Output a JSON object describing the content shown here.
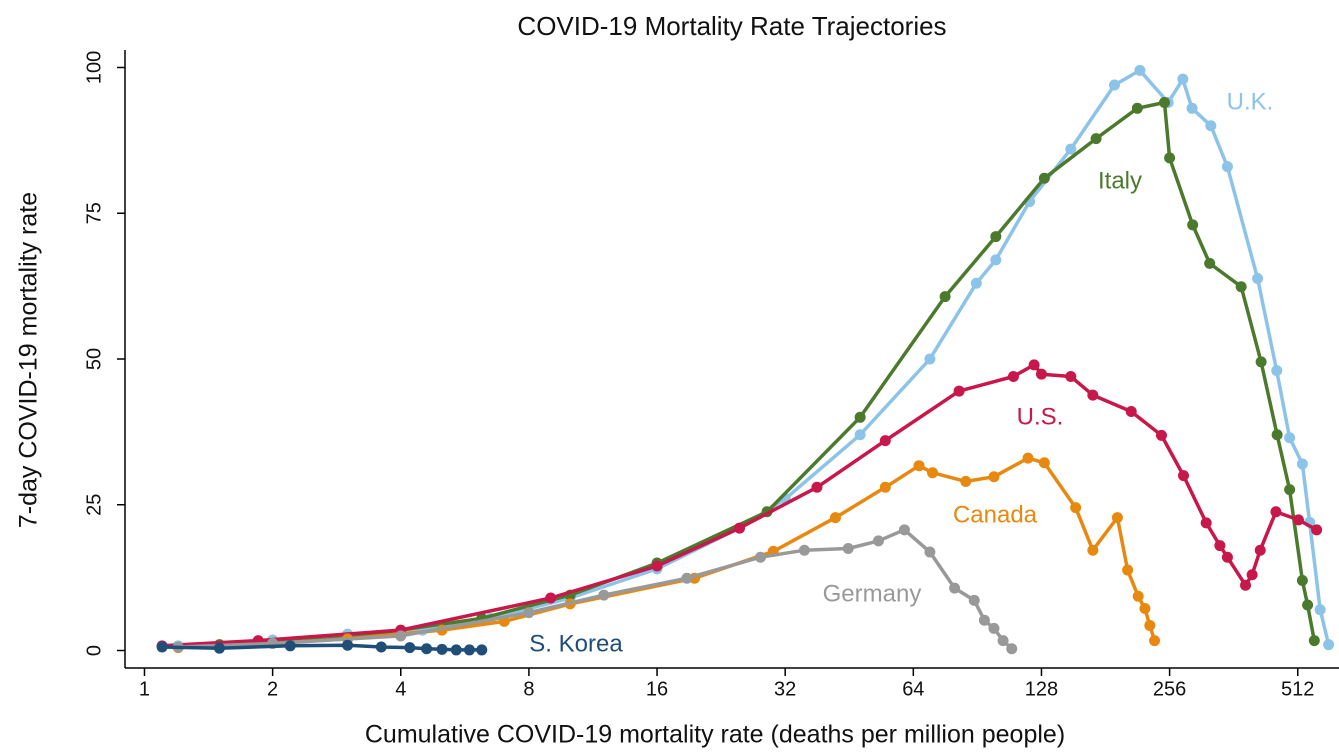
{
  "chart_data": {
    "type": "line",
    "title": "COVID-19 Mortality Rate Trajectories",
    "x_label": "Cumulative COVID-19 mortality rate (deaths per million people)",
    "y_label": "7-day COVID-19 mortality rate",
    "xscale": "log",
    "xlim": [
      0.9,
      640
    ],
    "ylim": [
      -3,
      103
    ],
    "xticks": [
      1,
      2,
      4,
      8,
      16,
      32,
      64,
      128,
      256,
      512
    ],
    "yticks": [
      0,
      25,
      50,
      75,
      100
    ],
    "series": [
      {
        "name": "U.K.",
        "color": "#8cc3e8",
        "x": [
          1.2,
          2,
          3,
          4.5,
          6.5,
          10,
          16,
          25,
          32,
          48,
          70,
          90,
          100,
          120,
          150,
          190,
          218,
          254,
          275,
          289,
          320,
          350,
          412,
          457,
          490,
          525,
          546,
          578,
          605
        ],
        "values": [
          0.8,
          1.8,
          2.8,
          3.5,
          5.5,
          9,
          14,
          21,
          26,
          37,
          50,
          63,
          67,
          77,
          86,
          97,
          99.5,
          94,
          98,
          93,
          90,
          83,
          63.8,
          48,
          36.5,
          32,
          22,
          7,
          1
        ]
      },
      {
        "name": "Italy",
        "color": "#4b7a2d",
        "x": [
          1.5,
          3,
          6.2,
          10,
          16,
          29,
          48,
          76,
          100,
          130,
          172,
          215,
          249,
          256,
          290,
          318,
          377,
          420,
          458,
          490,
          525,
          540,
          560
        ],
        "values": [
          1,
          2.2,
          5.5,
          9.5,
          15,
          23.8,
          40,
          60.7,
          71,
          81,
          87.8,
          93,
          94,
          84.5,
          73,
          66.4,
          62.4,
          49.5,
          37,
          27.6,
          12,
          7.8,
          1.7
        ]
      },
      {
        "name": "U.S.",
        "color": "#c8174a",
        "x": [
          1.1,
          1.85,
          4,
          9,
          16,
          25,
          38,
          55,
          82,
          110,
          123,
          128,
          150,
          169,
          208,
          245,
          276,
          312,
          336,
          350,
          386,
          400,
          418,
          455,
          514,
          567
        ],
        "values": [
          0.8,
          1.7,
          3.5,
          9,
          14.5,
          21,
          28,
          36,
          44.5,
          47,
          49,
          47.4,
          47,
          43.8,
          41,
          36.9,
          30,
          21.9,
          18,
          16,
          11.2,
          13,
          17.2,
          23.8,
          22.4,
          20.7
        ]
      },
      {
        "name": "Canada",
        "color": "#e8890f",
        "x": [
          1.2,
          2,
          3,
          5,
          7,
          10,
          19.6,
          30,
          42,
          55,
          66,
          71,
          85,
          99,
          119,
          130,
          154,
          169,
          193,
          204,
          216,
          224,
          230,
          236
        ],
        "values": [
          0.5,
          1.2,
          2,
          3.5,
          5,
          8,
          12.4,
          17,
          22.8,
          28,
          31.7,
          30.5,
          29,
          29.8,
          33,
          32.2,
          24.5,
          17.2,
          22.8,
          13.8,
          9.3,
          7.2,
          4.3,
          1.7
        ]
      },
      {
        "name": "Germany",
        "color": "#999999",
        "x": [
          1.2,
          2,
          4,
          8,
          12,
          18.8,
          28,
          35.5,
          45,
          53,
          61,
          70,
          80,
          89,
          94,
          99,
          104,
          109
        ],
        "values": [
          0.6,
          1.2,
          2.5,
          6.5,
          9.5,
          12.4,
          16,
          17.2,
          17.5,
          18.8,
          20.7,
          16.9,
          10.7,
          8.6,
          5.2,
          3.8,
          1.7,
          0.3
        ]
      },
      {
        "name": "S. Korea",
        "color": "#1f4e79",
        "x": [
          1.1,
          1.5,
          2.2,
          3,
          3.6,
          4.2,
          4.6,
          5,
          5.4,
          5.8,
          6.2
        ],
        "values": [
          0.6,
          0.4,
          0.8,
          0.9,
          0.6,
          0.5,
          0.3,
          0.2,
          0.1,
          0.1,
          0.1
        ]
      }
    ]
  }
}
